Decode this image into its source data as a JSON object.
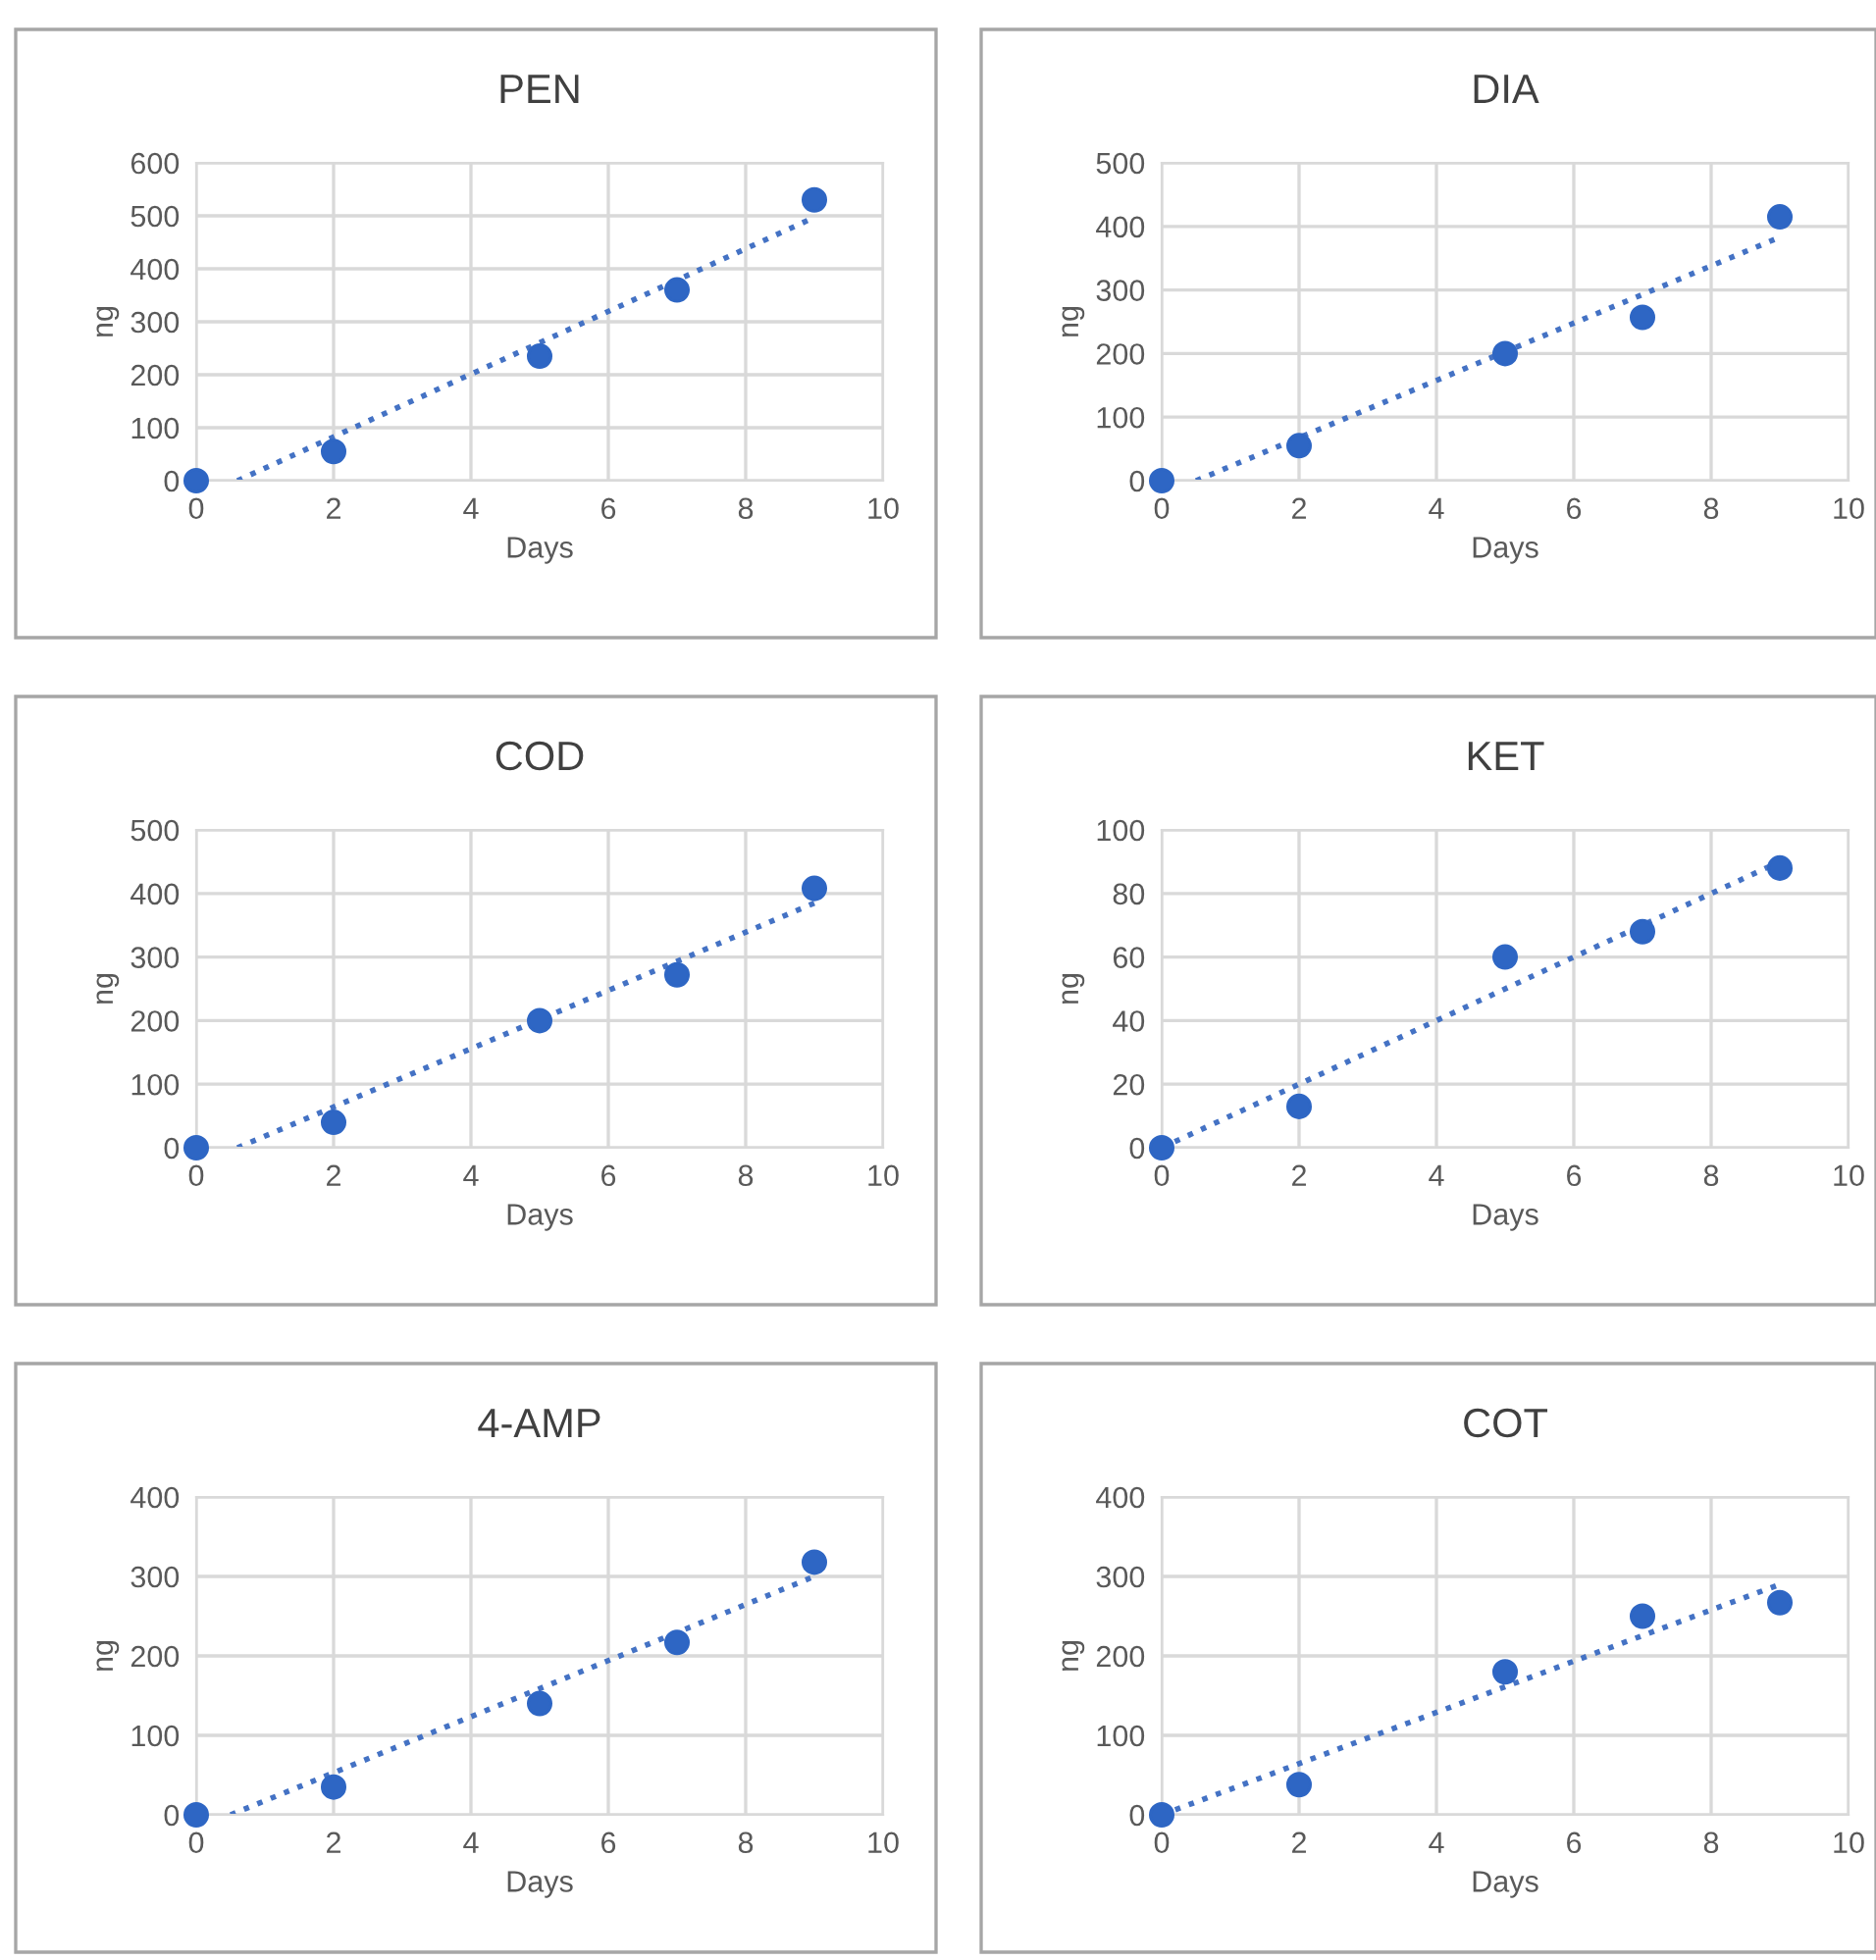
{
  "chart_data": [
    {
      "type": "scatter",
      "title": "PEN",
      "xlabel": "Days",
      "ylabel": "ng",
      "xlim": [
        0,
        10
      ],
      "xticks": [
        0,
        2,
        4,
        6,
        8,
        10
      ],
      "ylim": [
        0,
        600
      ],
      "yticks": [
        0,
        100,
        200,
        300,
        400,
        500,
        600
      ],
      "grid": true,
      "marker": "circle",
      "series": [
        {
          "color": "#2e66c4",
          "x": [
            0,
            2,
            5,
            7,
            9
          ],
          "values": [
            0,
            55,
            235,
            360,
            530
          ]
        },
        {
          "type": "line",
          "color": "#4472c4",
          "line_style": "dotted",
          "marker": "none",
          "x": [
            0.6,
            9
          ],
          "values": [
            0,
            497
          ]
        }
      ]
    },
    {
      "type": "scatter",
      "title": "DIA",
      "xlabel": "Days",
      "ylabel": "ng",
      "xlim": [
        0,
        10
      ],
      "xticks": [
        0,
        2,
        4,
        6,
        8,
        10
      ],
      "ylim": [
        0,
        500
      ],
      "yticks": [
        0,
        100,
        200,
        300,
        400,
        500
      ],
      "grid": true,
      "marker": "circle",
      "series": [
        {
          "color": "#2e66c4",
          "x": [
            0,
            2,
            5,
            7,
            9
          ],
          "values": [
            0,
            55,
            200,
            257,
            415
          ]
        },
        {
          "type": "line",
          "color": "#4472c4",
          "line_style": "dotted",
          "marker": "none",
          "x": [
            0.5,
            9
          ],
          "values": [
            0,
            383
          ]
        }
      ]
    },
    {
      "type": "scatter",
      "title": "COD",
      "xlabel": "Days",
      "ylabel": "ng",
      "xlim": [
        0,
        10
      ],
      "xticks": [
        0,
        2,
        4,
        6,
        8,
        10
      ],
      "ylim": [
        0,
        500
      ],
      "yticks": [
        0,
        100,
        200,
        300,
        400,
        500
      ],
      "grid": true,
      "marker": "circle",
      "series": [
        {
          "color": "#2e66c4",
          "x": [
            0,
            2,
            5,
            7,
            9
          ],
          "values": [
            0,
            40,
            200,
            272,
            408
          ]
        },
        {
          "type": "line",
          "color": "#4472c4",
          "line_style": "dotted",
          "marker": "none",
          "x": [
            0.6,
            9
          ],
          "values": [
            0,
            385
          ]
        }
      ]
    },
    {
      "type": "scatter",
      "title": "KET",
      "xlabel": "Days",
      "ylabel": "ng",
      "xlim": [
        0,
        10
      ],
      "xticks": [
        0,
        2,
        4,
        6,
        8,
        10
      ],
      "ylim": [
        0,
        100
      ],
      "yticks": [
        0,
        20,
        40,
        60,
        80,
        100
      ],
      "grid": true,
      "marker": "circle",
      "series": [
        {
          "color": "#2e66c4",
          "x": [
            0,
            2,
            5,
            7,
            9
          ],
          "values": [
            0,
            13,
            60,
            68,
            88
          ]
        },
        {
          "type": "line",
          "color": "#4472c4",
          "line_style": "dotted",
          "marker": "none",
          "x": [
            0,
            9
          ],
          "values": [
            0,
            90
          ]
        }
      ]
    },
    {
      "type": "scatter",
      "title": "4-AMP",
      "xlabel": "Days",
      "ylabel": "ng",
      "xlim": [
        0,
        10
      ],
      "xticks": [
        0,
        2,
        4,
        6,
        8,
        10
      ],
      "ylim": [
        0,
        400
      ],
      "yticks": [
        0,
        100,
        200,
        300,
        400
      ],
      "grid": true,
      "marker": "circle",
      "series": [
        {
          "color": "#2e66c4",
          "x": [
            0,
            2,
            5,
            7,
            9
          ],
          "values": [
            0,
            35,
            140,
            217,
            318
          ]
        },
        {
          "type": "line",
          "color": "#4472c4",
          "line_style": "dotted",
          "marker": "none",
          "x": [
            0.5,
            9
          ],
          "values": [
            0,
            300
          ]
        }
      ]
    },
    {
      "type": "scatter",
      "title": "COT",
      "xlabel": "Days",
      "ylabel": "ng",
      "xlim": [
        0,
        10
      ],
      "xticks": [
        0,
        2,
        4,
        6,
        8,
        10
      ],
      "ylim": [
        0,
        400
      ],
      "yticks": [
        0,
        100,
        200,
        300,
        400
      ],
      "grid": true,
      "marker": "circle",
      "series": [
        {
          "color": "#2e66c4",
          "x": [
            0,
            2,
            5,
            7,
            9
          ],
          "values": [
            0,
            38,
            180,
            250,
            267
          ]
        },
        {
          "type": "line",
          "color": "#4472c4",
          "line_style": "dotted",
          "marker": "none",
          "x": [
            0,
            9
          ],
          "values": [
            0,
            290
          ]
        }
      ]
    }
  ]
}
